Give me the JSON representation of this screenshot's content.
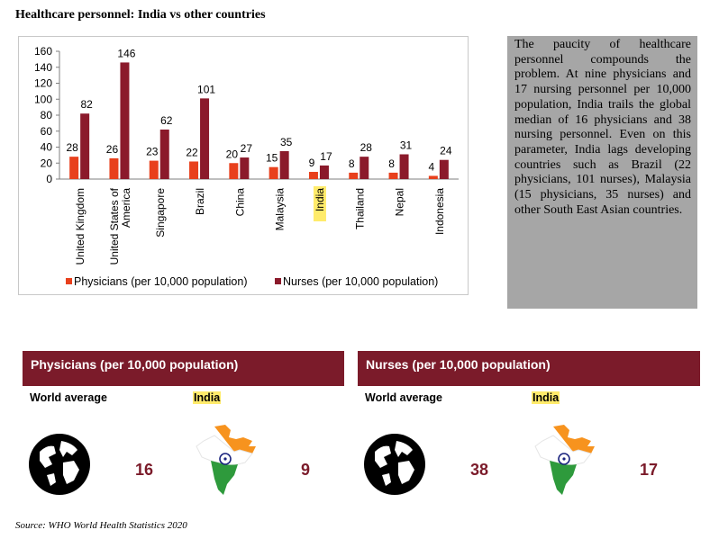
{
  "title": "Healthcare personnel: India vs other countries",
  "chart_data": {
    "type": "bar",
    "categories": [
      "United Kingdom",
      "United States of America",
      "Singapore",
      "Brazil",
      "China",
      "Malaysia",
      "India",
      "Thailand",
      "Nepal",
      "Indonesia"
    ],
    "highlight_category": "India",
    "series": [
      {
        "name": "Physicians (per 10,000 population)",
        "values": [
          28,
          26,
          23,
          22,
          20,
          15,
          9,
          8,
          8,
          4
        ],
        "color": "#e8401c"
      },
      {
        "name": "Nurses (per 10,000 population)",
        "values": [
          82,
          146,
          62,
          101,
          27,
          35,
          17,
          28,
          31,
          24
        ],
        "color": "#8b1a2b"
      }
    ],
    "yticks": [
      0,
      20,
      40,
      60,
      80,
      100,
      120,
      140,
      160
    ],
    "ylim": [
      0,
      160
    ],
    "legend_position": "bottom",
    "grid": false
  },
  "note": "The paucity of healthcare personnel compounds the problem. At nine physicians and 17 nursing personnel per 10,000 population, India trails the global median of 16 physicians and 38 nursing personnel. Even on this parameter, India lags developing countries such as Brazil (22 physicians, 101 nurses), Malaysia (15 physicians, 35 nurses) and other South East Asian countries.",
  "panels": {
    "physicians": {
      "heading": "Physicians (per 10,000 population)",
      "world_label": "World average",
      "india_label": "India",
      "world_value": "16",
      "india_value": "9"
    },
    "nurses": {
      "heading": "Nurses (per 10,000 population)",
      "world_label": "World average",
      "india_label": "India",
      "world_value": "38",
      "india_value": "17"
    }
  },
  "icons": {
    "globe": "globe-icon",
    "india_map": "india-flag-map-icon"
  },
  "colors": {
    "panel": "#7b1b2a",
    "note_bg": "#a6a6a6",
    "highlight": "#ffeb6b"
  },
  "source": "Source: WHO World Health Statistics 2020"
}
